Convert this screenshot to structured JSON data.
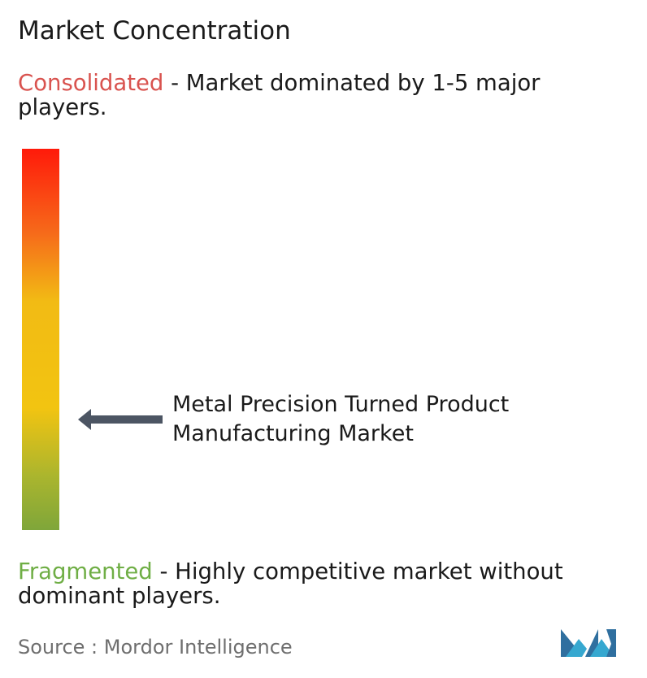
{
  "chart_data": {
    "type": "market-concentration-gauge",
    "title": "Market Concentration",
    "top_label": {
      "keyword": "Consolidated",
      "description": " - Market dominated by 1-5 major players."
    },
    "bottom_label": {
      "keyword": "Fragmented",
      "description": "  - Highly competitive market without dominant players."
    },
    "marker": {
      "label": "Metal Precision Turned Product Manufacturing Market",
      "position_from_consolidated": 0.71
    },
    "colors": {
      "consolidated": "#d9534f",
      "fragmented": "#6fae45",
      "scale_top": "#ff1a0a",
      "scale_bottom": "#7fa63a",
      "arrow": "#4c5563"
    }
  },
  "source": "Source :  Mordor Intelligence",
  "logo": {
    "icon": "mordor-intelligence-logo-icon"
  }
}
